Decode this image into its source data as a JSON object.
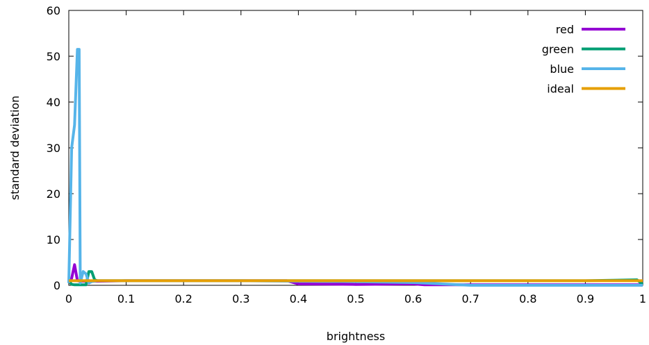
{
  "chart_data": {
    "type": "line",
    "title": "",
    "xlabel": "brightness",
    "ylabel": "standard deviation",
    "xlim": [
      0,
      1
    ],
    "ylim": [
      0,
      60
    ],
    "xticks": [
      0,
      0.1,
      0.2,
      0.3,
      0.4,
      0.5,
      0.6,
      0.7,
      0.8,
      0.9,
      1
    ],
    "xtick_labels": [
      "0",
      "0.1",
      "0.2",
      "0.3",
      "0.4",
      "0.5",
      "0.6",
      "0.7",
      "0.8",
      "0.9",
      "1"
    ],
    "yticks": [
      0,
      10,
      20,
      30,
      40,
      50,
      60
    ],
    "ytick_labels": [
      "0",
      "10",
      "20",
      "30",
      "40",
      "50",
      "60"
    ],
    "grid": false,
    "legend_position": "top-right",
    "series": [
      {
        "name": "red",
        "color": "#9400d3",
        "x": [
          0,
          0.005,
          0.01,
          0.015,
          0.02,
          0.03,
          0.05,
          0.1,
          0.2,
          0.3,
          0.38,
          0.4,
          0.5,
          0.6,
          0.62,
          0.7,
          0.8,
          0.9,
          1
        ],
        "y": [
          0.8,
          1.5,
          4.5,
          1.0,
          0.9,
          0.9,
          0.9,
          1.0,
          1.0,
          1.0,
          1.0,
          0.3,
          0.2,
          0.3,
          0.1,
          0.1,
          0.1,
          0.1,
          0.1
        ]
      },
      {
        "name": "green",
        "color": "#009e73",
        "x": [
          0,
          0.005,
          0.01,
          0.02,
          0.03,
          0.035,
          0.04,
          0.045,
          0.05,
          0.1,
          0.2,
          0.3,
          0.4,
          0.5,
          0.6,
          0.7,
          0.8,
          0.9,
          0.99,
          1
        ],
        "y": [
          1.0,
          0.2,
          0.1,
          0.1,
          0.1,
          3.0,
          3.0,
          1.2,
          1.0,
          1.0,
          1.0,
          1.0,
          1.0,
          1.0,
          1.0,
          1.0,
          1.0,
          1.0,
          1.2,
          0.2
        ]
      },
      {
        "name": "blue",
        "color": "#56b4e9",
        "x": [
          0,
          0.005,
          0.01,
          0.015,
          0.018,
          0.02,
          0.025,
          0.03,
          0.035,
          0.04,
          0.05,
          0.1,
          0.2,
          0.3,
          0.4,
          0.5,
          0.6,
          0.7,
          0.8,
          0.9,
          1
        ],
        "y": [
          0.5,
          30.0,
          35.0,
          51.5,
          51.5,
          0.5,
          3.0,
          2.5,
          0.5,
          0.8,
          1.0,
          1.0,
          1.0,
          1.0,
          0.9,
          0.8,
          0.6,
          0.0,
          0.0,
          0.0,
          0.0
        ]
      },
      {
        "name": "ideal",
        "color": "#e69f00",
        "x": [
          0,
          1
        ],
        "y": [
          1,
          1
        ]
      }
    ]
  }
}
